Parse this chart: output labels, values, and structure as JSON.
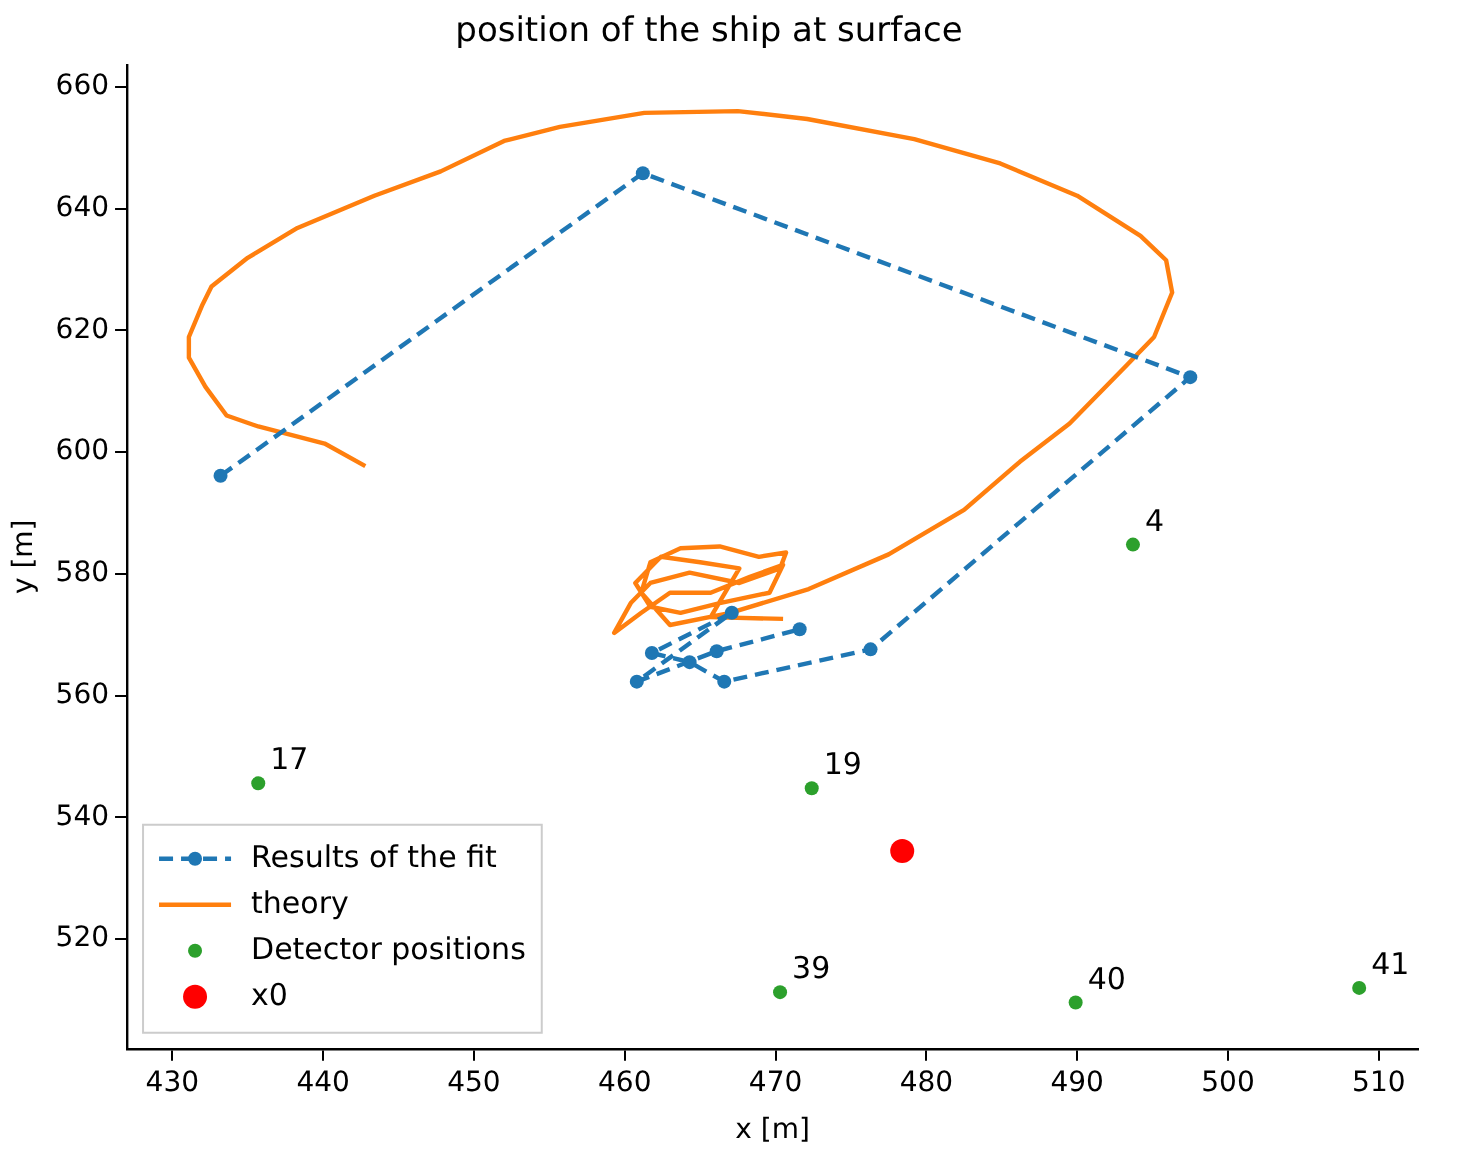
{
  "chart_data": {
    "type": "line",
    "title": "position of the ship at surface",
    "xlabel": "x [m]",
    "ylabel": "y [m]",
    "xlim": [
      427,
      512.6
    ],
    "ylim": [
      502,
      663.6
    ],
    "xticks": [
      430,
      440,
      450,
      460,
      470,
      480,
      490,
      500,
      510
    ],
    "yticks": [
      520,
      540,
      560,
      580,
      600,
      620,
      640,
      660
    ],
    "grid": false,
    "legend": "bottom left",
    "series": [
      {
        "name": "Results of the fit",
        "type": "line",
        "color": "#1f77b4",
        "marker": "circle",
        "line_style": "dashed",
        "x": [
          433.2,
          461.2,
          497.5,
          476.3,
          466.6,
          464.3,
          461.8,
          467.1,
          460.8,
          466.1,
          471.6
        ],
        "values": [
          596.1,
          645.8,
          612.3,
          567.6,
          562.3,
          565.5,
          567.0,
          573.6,
          562.3,
          567.3,
          570.9
        ]
      },
      {
        "name": "theory",
        "type": "line",
        "color": "#ff7f0e",
        "marker": "none",
        "line_style": "solid",
        "x": [
          442.8,
          440.1,
          435.7,
          433.6,
          432.2,
          431.1,
          431.1,
          432.0,
          432.6,
          435.0,
          438.3,
          443.4,
          447.8,
          452.0,
          455.7,
          461.3,
          467.5,
          472.1,
          479.2,
          484.9,
          490.0,
          494.2,
          495.9,
          496.3,
          495.1,
          493.3,
          489.5,
          486.2,
          482.5,
          477.5,
          472.2,
          467.0,
          463.0,
          461.1,
          461.7,
          463.7,
          466.3,
          468.9,
          470.7,
          470.3,
          467.6,
          464.3,
          461.7,
          460.4,
          459.3,
          461.1,
          463.0,
          465.7,
          468.3,
          470.5,
          469.6,
          466.3,
          463.7,
          461.7,
          460.7,
          462.4,
          465.0,
          467.6,
          465.7,
          470.5
        ],
        "values": [
          597.7,
          601.4,
          604.2,
          606.0,
          610.7,
          615.5,
          618.9,
          624.2,
          627.2,
          631.9,
          636.8,
          642.1,
          646.1,
          651.1,
          653.4,
          655.7,
          656.0,
          654.7,
          651.4,
          647.4,
          642.1,
          635.5,
          631.5,
          626.2,
          618.9,
          614.3,
          604.7,
          598.4,
          590.5,
          583.2,
          577.5,
          573.6,
          571.6,
          576.9,
          581.9,
          584.2,
          584.5,
          582.8,
          583.5,
          580.9,
          578.5,
          580.2,
          578.5,
          575.2,
          570.3,
          573.6,
          576.9,
          576.9,
          579.5,
          581.5,
          576.9,
          575.2,
          573.6,
          574.6,
          578.5,
          582.8,
          581.9,
          580.9,
          572.9,
          572.6
        ]
      },
      {
        "name": "Detector positions",
        "type": "scatter",
        "color": "#2ca02c",
        "marker": "circle",
        "x": [
          493.7,
          435.7,
          472.4,
          470.3,
          489.9,
          508.7
        ],
        "values": [
          584.8,
          545.6,
          544.8,
          511.3,
          509.6,
          512.0
        ]
      },
      {
        "name": "x0",
        "type": "scatter",
        "color": "#ff0000",
        "marker": "circle",
        "x": [
          478.4
        ],
        "values": [
          534.5
        ]
      }
    ],
    "annotations": [
      {
        "text": "4",
        "x": 493.7,
        "y": 584.8
      },
      {
        "text": "17",
        "x": 435.7,
        "y": 545.6
      },
      {
        "text": "19",
        "x": 472.4,
        "y": 544.8
      },
      {
        "text": "39",
        "x": 470.3,
        "y": 511.3
      },
      {
        "text": "40",
        "x": 489.9,
        "y": 509.6
      },
      {
        "text": "41",
        "x": 508.7,
        "y": 512.0
      }
    ]
  }
}
